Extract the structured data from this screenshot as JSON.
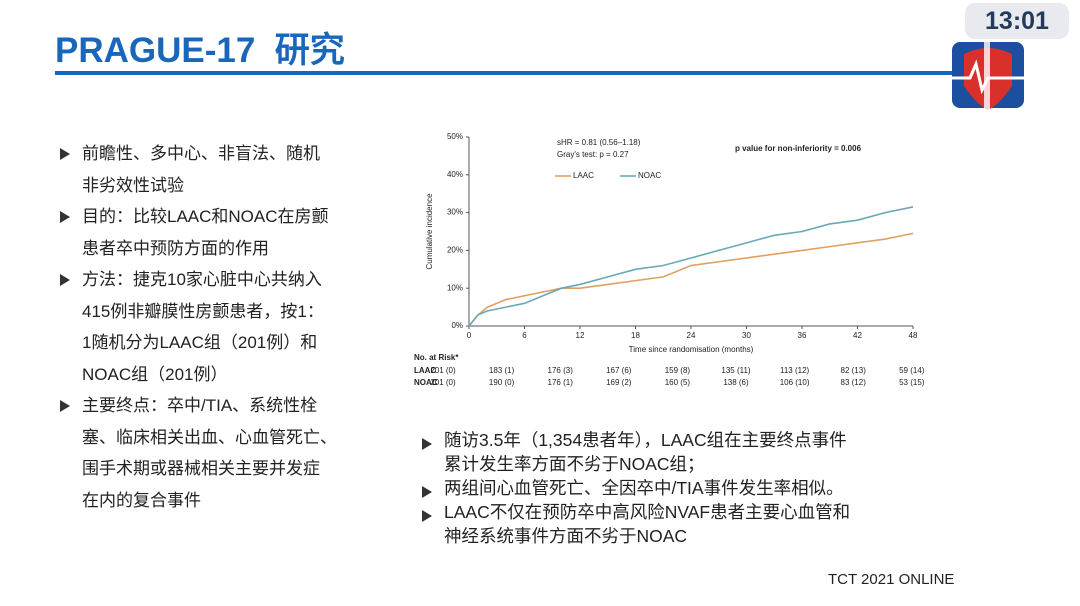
{
  "header": {
    "title": "PRAGUE-17  研究",
    "clock": "13:01"
  },
  "bullets": [
    [
      "前瞻性、多中心、非盲法、随机",
      "非劣效性试验"
    ],
    [
      "目的：比较LAAC和NOAC在房颤",
      "患者卒中预防方面的作用"
    ],
    [
      "方法：捷克10家心脏中心共纳入",
      "415例非瓣膜性房颤患者，按1：",
      "1随机分为LAAC组（201例）和",
      "NOAC组（201例）"
    ],
    [
      "主要终点：卒中/TIA、系统性栓",
      "塞、临床相关出血、心血管死亡、",
      "围手术期或器械相关主要并发症",
      "在内的复合事件"
    ]
  ],
  "conclusions": [
    [
      "随访3.5年（1,354患者年），LAAC组在主要终点事件",
      "累计发生率方面不劣于NOAC组；"
    ],
    [
      "两组间心血管死亡、全因卒中/TIA事件发生率相似。"
    ],
    [
      "LAAC不仅在预防卒中高风险NVAF患者主要心血管和",
      "神经系统事件方面不劣于NOAC"
    ]
  ],
  "footer": "TCT 2021 ONLINE",
  "chart_data": {
    "type": "line",
    "annotations": [
      "sHR = 0.81 (0.56–1.18)",
      "Gray's test: p = 0.27",
      "p value for non-inferiority = 0.006"
    ],
    "x_label": "Time since randomisation (months)",
    "y_label": "Cumulative incidence",
    "x": [
      0,
      1,
      2,
      4,
      6,
      8,
      10,
      12,
      15,
      18,
      21,
      24,
      27,
      30,
      33,
      36,
      39,
      42,
      45,
      48
    ],
    "series": [
      {
        "name": "LAAC",
        "color": "#e0a060",
        "values": [
          0,
          3,
          5,
          7,
          8,
          9,
          10,
          10,
          11,
          12,
          13,
          16,
          17,
          18,
          19,
          20,
          21,
          22,
          23,
          24.5
        ]
      },
      {
        "name": "NOAC",
        "color": "#6aa8b8",
        "values": [
          0,
          3,
          4,
          5,
          6,
          8,
          10,
          11,
          13,
          15,
          16,
          18,
          20,
          22,
          24,
          25,
          27,
          28,
          30,
          31.5
        ]
      }
    ],
    "xlim": [
      0,
      48
    ],
    "xticks": [
      0,
      6,
      12,
      18,
      24,
      30,
      36,
      42,
      48
    ],
    "ylim": [
      0,
      50
    ],
    "yticks": [
      {
        "value": 0,
        "label": "0%"
      },
      {
        "value": 10,
        "label": "10%"
      },
      {
        "value": 20,
        "label": "20%"
      },
      {
        "value": 30,
        "label": "30%"
      },
      {
        "value": 40,
        "label": "40%"
      },
      {
        "value": 50,
        "label": "50%"
      }
    ],
    "risk_table": {
      "title": "No. at Risk*",
      "rows": [
        {
          "name": "LAAC",
          "values": [
            "201 (0)",
            "183 (1)",
            "176 (3)",
            "167 (6)",
            "159 (8)",
            "135 (11)",
            "113 (12)",
            "82 (13)",
            "59 (14)"
          ]
        },
        {
          "name": "NOAC",
          "values": [
            "201 (0)",
            "190 (0)",
            "176 (1)",
            "169 (2)",
            "160 (5)",
            "138 (6)",
            "106 (10)",
            "83 (12)",
            "53 (15)"
          ]
        }
      ]
    }
  }
}
